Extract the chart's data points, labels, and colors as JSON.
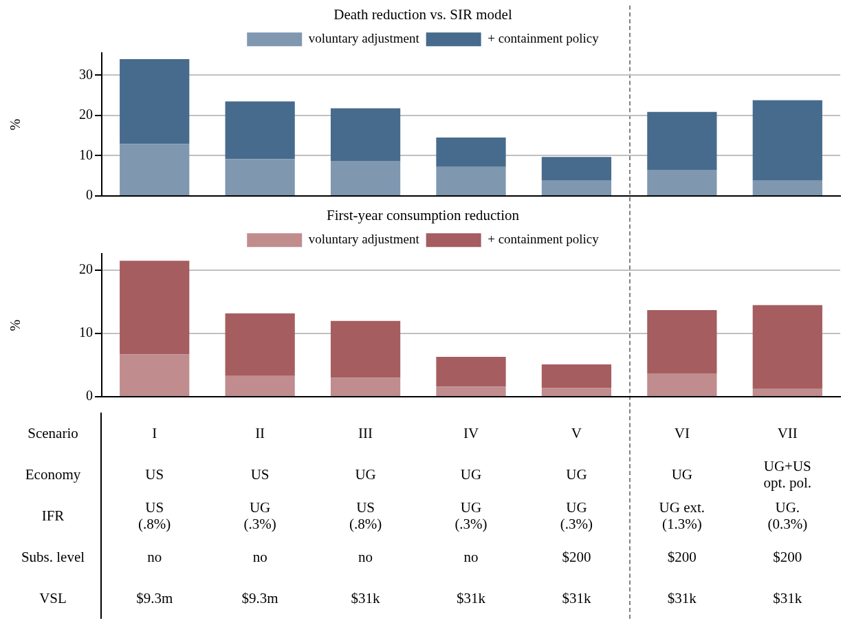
{
  "chart_data": [
    {
      "type": "bar",
      "stacked": true,
      "ylabel": "%",
      "legend_title": "Death reduction vs. SIR model",
      "legend": "top",
      "grid": "y",
      "tick_labels": "y",
      "categories": [
        null,
        null,
        null,
        null,
        null,
        null,
        null
      ],
      "ylim": [
        0,
        35.5
      ],
      "yticks": [
        0,
        10,
        20,
        30
      ],
      "series": [
        {
          "name": "voluntary adjustment",
          "color": "#7f98b0",
          "values": [
            12.9,
            9.2,
            8.7,
            7.2,
            3.8,
            6.5,
            3.8
          ]
        },
        {
          "name": "+ containment policy",
          "color": "#476b8c",
          "values": [
            21.1,
            14.3,
            13.1,
            7.3,
            5.9,
            14.4,
            20.0
          ]
        }
      ]
    },
    {
      "type": "bar",
      "stacked": true,
      "ylabel": "%",
      "legend_title": "First-year consumption reduction",
      "legend": "top",
      "grid": "y",
      "tick_labels": "y",
      "categories": [
        null,
        null,
        null,
        null,
        null,
        null,
        null
      ],
      "ylim": [
        0,
        22.6
      ],
      "yticks": [
        0,
        10,
        20
      ],
      "series": [
        {
          "name": "voluntary adjustment",
          "color": "#c08c8e",
          "values": [
            6.7,
            3.3,
            3.0,
            1.6,
            1.4,
            3.7,
            1.3
          ]
        },
        {
          "name": "+ containment policy",
          "color": "#a55d60",
          "values": [
            14.8,
            9.9,
            9.0,
            4.7,
            3.7,
            10.0,
            13.2
          ]
        }
      ]
    },
    {
      "type": "other",
      "categories": [
        "I",
        "II",
        "III",
        "IV",
        "V",
        "VI",
        "VII"
      ],
      "y_categories": [
        "Scenario",
        "Economy",
        "IFR",
        "Subs. level",
        "VSL"
      ],
      "cell_labels": [
        [
          "US",
          "US",
          "UG",
          "UG",
          "UG",
          "UG",
          "UG+US\nopt. pol."
        ],
        [
          "US\n(.8%)",
          "UG\n(.3%)",
          "US\n(.8%)",
          "UG\n(.3%)",
          "UG\n(.3%)",
          "UG ext.\n(1.3%)",
          "UG.\n(0.3%)"
        ],
        [
          "no",
          "no",
          "no",
          "no",
          "$200",
          "$200",
          "$200"
        ],
        [
          "$9.3m",
          "$9.3m",
          "$31k",
          "$31k",
          "$31k",
          "$31k",
          "$31k"
        ]
      ]
    }
  ]
}
